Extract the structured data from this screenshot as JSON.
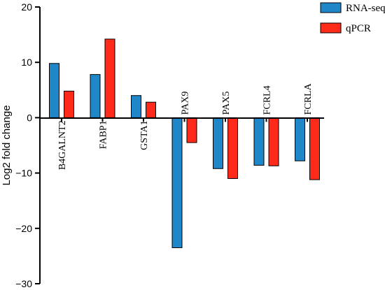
{
  "chart_data": {
    "type": "bar",
    "title": "",
    "xlabel": "",
    "ylabel": "Log2 fold change",
    "ylim": [
      -30,
      20
    ],
    "yticks": [
      "20",
      "10",
      "0",
      "−10",
      "−20",
      "−30"
    ],
    "categories": [
      "B4GALNT2",
      "FABP1",
      "GSTA1",
      "PAX9",
      "PAX5",
      "FCRL4",
      "FCRLA"
    ],
    "series": [
      {
        "name": "RNA-seq",
        "color": "#1f86c8",
        "values": [
          9.8,
          7.8,
          4.0,
          -23.5,
          -9.2,
          -8.6,
          -7.8
        ]
      },
      {
        "name": "qPCR",
        "color": "#ff2a1a",
        "values": [
          4.8,
          14.2,
          2.8,
          -4.5,
          -11.0,
          -8.7,
          -11.2
        ]
      }
    ],
    "grid": false,
    "legend": "top-right"
  }
}
